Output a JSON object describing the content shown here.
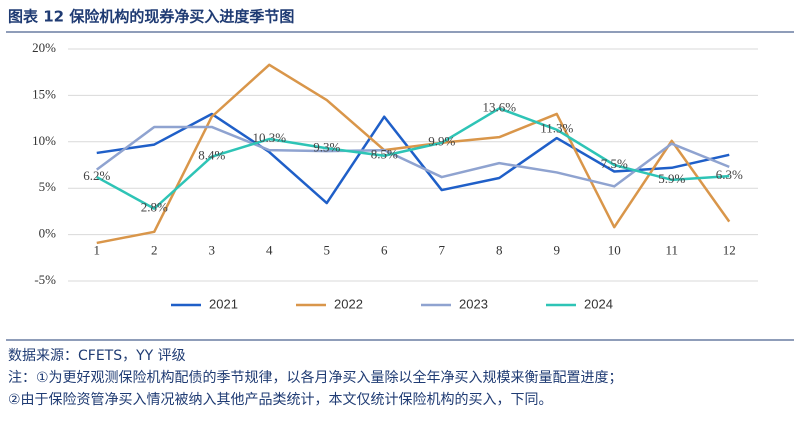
{
  "chart_data": {
    "type": "line",
    "title": "图表 12 保险机构的现券净买入进度季节图",
    "categories": [
      "1",
      "2",
      "3",
      "4",
      "5",
      "6",
      "7",
      "8",
      "9",
      "10",
      "11",
      "12"
    ],
    "series": [
      {
        "name": "2021",
        "color": "#1f5fc8",
        "values": [
          8.8,
          9.7,
          13.0,
          8.9,
          3.4,
          12.7,
          4.8,
          6.1,
          10.4,
          6.8,
          7.2,
          8.6
        ]
      },
      {
        "name": "2022",
        "color": "#d9964a",
        "values": [
          -0.9,
          0.3,
          12.7,
          18.3,
          14.5,
          9.1,
          9.9,
          10.5,
          13.0,
          0.8,
          10.1,
          1.4
        ]
      },
      {
        "name": "2023",
        "color": "#8fa3d0",
        "values": [
          7.0,
          11.6,
          11.6,
          9.1,
          9.0,
          9.1,
          6.2,
          7.7,
          6.7,
          5.2,
          9.8,
          7.3
        ]
      },
      {
        "name": "2024",
        "color": "#2ec4b6",
        "values": [
          6.2,
          2.8,
          8.4,
          10.3,
          9.3,
          8.5,
          9.9,
          13.6,
          11.3,
          7.5,
          5.9,
          6.3
        ],
        "value_labels": [
          "6.2%",
          "2.8%",
          "8.4%",
          "10.3%",
          "9.3%",
          "8.5%",
          "9.9%",
          "13.6%",
          "11.3%",
          "7.5%",
          "5.9%",
          "6.3%"
        ]
      }
    ],
    "ylim": [
      -5,
      20
    ],
    "yticks": [
      {
        "value": -5,
        "label": "-5%"
      },
      {
        "value": 0,
        "label": "0%"
      },
      {
        "value": 5,
        "label": "5%"
      },
      {
        "value": 10,
        "label": "10%"
      },
      {
        "value": 15,
        "label": "15%"
      },
      {
        "value": 20,
        "label": "20%"
      }
    ],
    "grid": true,
    "legend": "bottom",
    "notes": [
      "数据来源：CFETS，YY 评级",
      "注：①为更好观测保险机构配债的季节规律，以各月净买入量除以全年净买入规模来衡量配置进度；",
      "②由于保险资管净买入情况被纳入其他产品类统计，本文仅统计保险机构的买入，下同。"
    ]
  }
}
